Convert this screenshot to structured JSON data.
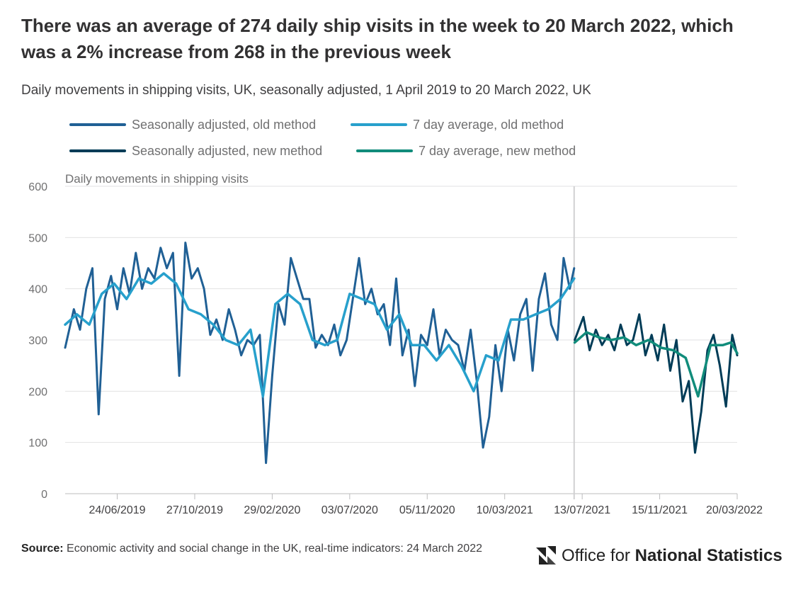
{
  "title": "There was an average of 274 daily ship visits in the week to 20 March 2022, which was a 2% increase from 268 in the previous week",
  "subtitle": "Daily movements in shipping visits, UK, seasonally adjusted, 1 April 2019 to 20 March 2022, UK",
  "source": {
    "label": "Source:",
    "text": "Economic activity and social change in the UK, real-time indicators: 24 March 2022"
  },
  "logo": {
    "text_light": "Office for",
    "text_bold": "National Statistics"
  },
  "chart_data": {
    "type": "line",
    "ylabel": "Daily movements in shipping visits",
    "xlabel": "",
    "ylim": [
      0,
      600
    ],
    "y_ticks": [
      0,
      100,
      200,
      300,
      400,
      500,
      600
    ],
    "x_range": [
      "2019-04-01",
      "2022-03-20"
    ],
    "x_tick_labels": [
      "24/06/2019",
      "27/10/2019",
      "29/02/2020",
      "03/07/2020",
      "05/11/2020",
      "10/03/2021",
      "13/07/2021",
      "15/11/2021",
      "20/03/2022"
    ],
    "x_tick_dates": [
      "2019-06-24",
      "2019-10-27",
      "2020-02-29",
      "2020-07-03",
      "2020-11-05",
      "2021-03-10",
      "2021-07-13",
      "2021-11-15",
      "2022-03-20"
    ],
    "method_change_date": "2021-06-30",
    "grid": true,
    "legend_position": "top",
    "series": [
      {
        "name": "Seasonally adjusted, old method",
        "color": "#206095",
        "x": [
          "2019-04-01",
          "2019-04-15",
          "2019-04-25",
          "2019-05-05",
          "2019-05-15",
          "2019-05-25",
          "2019-06-04",
          "2019-06-14",
          "2019-06-24",
          "2019-07-04",
          "2019-07-14",
          "2019-07-24",
          "2019-08-03",
          "2019-08-13",
          "2019-08-23",
          "2019-09-02",
          "2019-09-12",
          "2019-09-22",
          "2019-10-02",
          "2019-10-12",
          "2019-10-22",
          "2019-11-01",
          "2019-11-11",
          "2019-11-21",
          "2019-12-01",
          "2019-12-11",
          "2019-12-21",
          "2019-12-31",
          "2020-01-10",
          "2020-01-20",
          "2020-01-30",
          "2020-02-09",
          "2020-02-19",
          "2020-02-29",
          "2020-03-10",
          "2020-03-20",
          "2020-03-30",
          "2020-04-09",
          "2020-04-19",
          "2020-04-29",
          "2020-05-09",
          "2020-05-19",
          "2020-05-29",
          "2020-06-08",
          "2020-06-18",
          "2020-06-28",
          "2020-07-08",
          "2020-07-18",
          "2020-07-28",
          "2020-08-07",
          "2020-08-17",
          "2020-08-27",
          "2020-09-06",
          "2020-09-16",
          "2020-09-26",
          "2020-10-06",
          "2020-10-16",
          "2020-10-26",
          "2020-11-05",
          "2020-11-15",
          "2020-11-25",
          "2020-12-05",
          "2020-12-15",
          "2020-12-25",
          "2021-01-04",
          "2021-01-14",
          "2021-01-24",
          "2021-02-03",
          "2021-02-13",
          "2021-02-23",
          "2021-03-05",
          "2021-03-15",
          "2021-03-25",
          "2021-04-04",
          "2021-04-14",
          "2021-04-24",
          "2021-05-04",
          "2021-05-14",
          "2021-05-24",
          "2021-06-03",
          "2021-06-13",
          "2021-06-23",
          "2021-06-30"
        ],
        "y": [
          285,
          360,
          320,
          400,
          440,
          155,
          380,
          425,
          360,
          440,
          390,
          470,
          400,
          440,
          420,
          480,
          440,
          470,
          230,
          490,
          420,
          440,
          400,
          310,
          340,
          300,
          360,
          320,
          270,
          300,
          290,
          310,
          60,
          230,
          370,
          330,
          460,
          420,
          380,
          380,
          285,
          310,
          290,
          330,
          270,
          300,
          380,
          460,
          370,
          400,
          350,
          370,
          290,
          420,
          270,
          320,
          210,
          310,
          290,
          360,
          270,
          320,
          300,
          290,
          240,
          320,
          220,
          90,
          150,
          290,
          200,
          320,
          260,
          350,
          380,
          240,
          380,
          430,
          330,
          300,
          460,
          400,
          440
        ],
        "note": "approximate trace of visible peaks/troughs"
      },
      {
        "name": "7 day average, old method",
        "color": "#27a0cc",
        "x": [
          "2019-04-01",
          "2019-04-20",
          "2019-05-10",
          "2019-05-30",
          "2019-06-19",
          "2019-07-09",
          "2019-07-29",
          "2019-08-18",
          "2019-09-07",
          "2019-09-27",
          "2019-10-17",
          "2019-11-06",
          "2019-11-26",
          "2019-12-16",
          "2020-01-05",
          "2020-01-25",
          "2020-02-14",
          "2020-03-05",
          "2020-03-25",
          "2020-04-14",
          "2020-05-04",
          "2020-05-24",
          "2020-06-13",
          "2020-07-03",
          "2020-07-23",
          "2020-08-12",
          "2020-09-01",
          "2020-09-21",
          "2020-10-11",
          "2020-10-31",
          "2020-11-20",
          "2020-12-10",
          "2020-12-30",
          "2021-01-19",
          "2021-02-08",
          "2021-02-28",
          "2021-03-20",
          "2021-04-09",
          "2021-04-29",
          "2021-05-19",
          "2021-06-08",
          "2021-06-30"
        ],
        "y": [
          330,
          350,
          330,
          390,
          410,
          380,
          420,
          410,
          430,
          410,
          360,
          350,
          330,
          300,
          290,
          320,
          190,
          370,
          390,
          370,
          300,
          290,
          300,
          390,
          380,
          370,
          320,
          350,
          290,
          290,
          260,
          290,
          250,
          200,
          270,
          260,
          340,
          340,
          350,
          360,
          380,
          420
        ]
      },
      {
        "name": "Seasonally adjusted, new method",
        "color": "#003c57",
        "x": [
          "2021-07-01",
          "2021-07-15",
          "2021-07-25",
          "2021-08-04",
          "2021-08-14",
          "2021-08-24",
          "2021-09-03",
          "2021-09-13",
          "2021-09-23",
          "2021-10-03",
          "2021-10-13",
          "2021-10-23",
          "2021-11-02",
          "2021-11-12",
          "2021-11-22",
          "2021-12-02",
          "2021-12-12",
          "2021-12-22",
          "2022-01-01",
          "2022-01-11",
          "2022-01-21",
          "2022-01-31",
          "2022-02-10",
          "2022-02-20",
          "2022-03-02",
          "2022-03-12",
          "2022-03-20"
        ],
        "y": [
          300,
          345,
          280,
          320,
          290,
          310,
          280,
          330,
          290,
          300,
          350,
          270,
          310,
          260,
          330,
          240,
          300,
          180,
          220,
          80,
          160,
          280,
          310,
          250,
          170,
          310,
          270
        ]
      },
      {
        "name": "7 day average, new method",
        "color": "#118c7b",
        "x": [
          "2021-07-01",
          "2021-07-20",
          "2021-08-09",
          "2021-08-29",
          "2021-09-18",
          "2021-10-08",
          "2021-10-28",
          "2021-11-17",
          "2021-12-07",
          "2021-12-27",
          "2022-01-16",
          "2022-02-05",
          "2022-02-25",
          "2022-03-10",
          "2022-03-20"
        ],
        "y": [
          295,
          315,
          305,
          300,
          305,
          290,
          300,
          285,
          280,
          265,
          190,
          290,
          290,
          295,
          274
        ]
      }
    ]
  }
}
